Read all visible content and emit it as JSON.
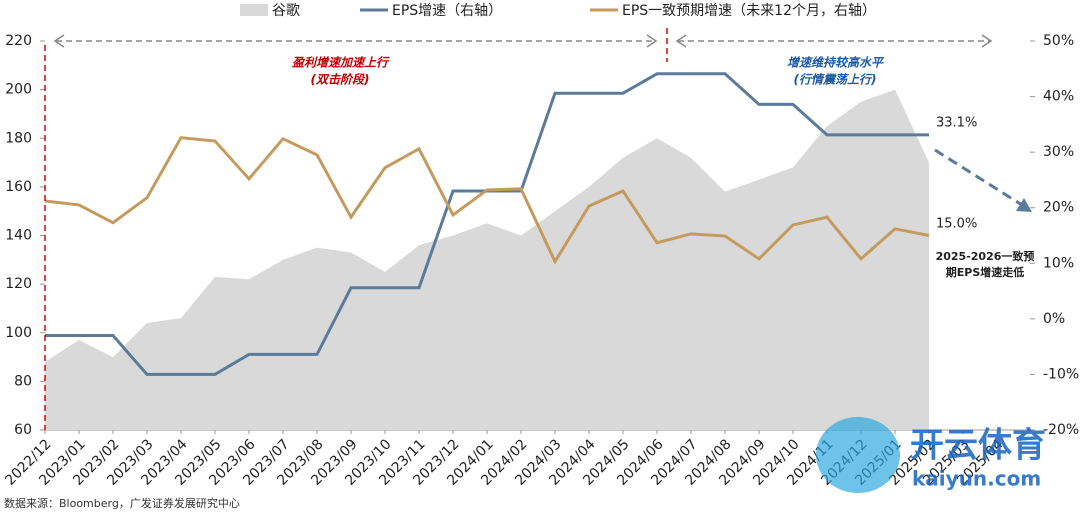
{
  "chart_data": {
    "type": "line",
    "categories": [
      "2022/12",
      "2023/01",
      "2023/02",
      "2023/03",
      "2023/04",
      "2023/05",
      "2023/06",
      "2023/07",
      "2023/08",
      "2023/09",
      "2023/10",
      "2023/11",
      "2023/12",
      "2024/01",
      "2024/02",
      "2024/03",
      "2024/04",
      "2024/05",
      "2024/06",
      "2024/07",
      "2024/08",
      "2024/09",
      "2024/10",
      "2024/11",
      "2024/12",
      "2025/01",
      "2025/02",
      "2025/03",
      "2025/04"
    ],
    "series": [
      {
        "name": "谷歌",
        "type": "area",
        "color": "#d9d9d9",
        "axis": "y",
        "values": [
          88,
          97,
          90,
          104,
          106,
          123,
          122,
          130,
          135,
          133,
          125,
          136,
          140,
          145,
          140,
          150,
          160,
          172,
          180,
          172,
          158,
          163,
          168,
          185,
          195,
          200,
          170,
          null,
          null
        ]
      },
      {
        "name": "EPS增速（右轴）",
        "type": "line",
        "color": "#5b7b9a",
        "axis": "y2",
        "values": [
          -3,
          -3,
          -3,
          -10,
          -10,
          -10,
          -6.4,
          -6.4,
          -6.4,
          5.6,
          5.6,
          5.6,
          23,
          23,
          23,
          40.6,
          40.6,
          40.6,
          44.1,
          44.1,
          44.1,
          38.6,
          38.6,
          33.1,
          33.1,
          33.1,
          33.1,
          null,
          null
        ]
      },
      {
        "name": "EPS一致预期增速（未来12个月，右轴）",
        "type": "line",
        "color": "#c49a5e",
        "axis": "y2",
        "values": [
          21.2,
          20.5,
          17.3,
          21.8,
          32.6,
          32,
          25.2,
          32.4,
          29.5,
          18.3,
          27.2,
          30.6,
          18.7,
          23.2,
          23.4,
          10.3,
          20.3,
          23,
          13.7,
          15.3,
          14.9,
          10.8,
          16.9,
          18.3,
          10.8,
          16.2,
          15.0,
          null,
          null
        ]
      }
    ],
    "ylim": [
      60,
      220
    ],
    "yticks": [
      60,
      80,
      100,
      120,
      140,
      160,
      180,
      200,
      220
    ],
    "y2lim": [
      -20,
      50
    ],
    "y2ticks": [
      {
        "value": -20,
        "label": "-20%"
      },
      {
        "value": -10,
        "label": "-10%"
      },
      {
        "value": 0,
        "label": "0%"
      },
      {
        "value": 10,
        "label": "10%"
      },
      {
        "value": 20,
        "label": "20%"
      },
      {
        "value": 30,
        "label": "30%"
      },
      {
        "value": 40,
        "label": "40%"
      },
      {
        "value": 50,
        "label": "50%"
      }
    ],
    "annotations": [
      "盈利增速加速上行",
      "(双击阶段)",
      "增速维持较高水平",
      "(行情震荡上行)",
      "33.1%",
      "15.0%",
      "2025-2026一致预",
      "期EPS增速走低"
    ],
    "source": "数据来源：Bloomberg，广发证券发展研究中心",
    "watermark": [
      "开云体育",
      "kaiyun.com"
    ]
  }
}
